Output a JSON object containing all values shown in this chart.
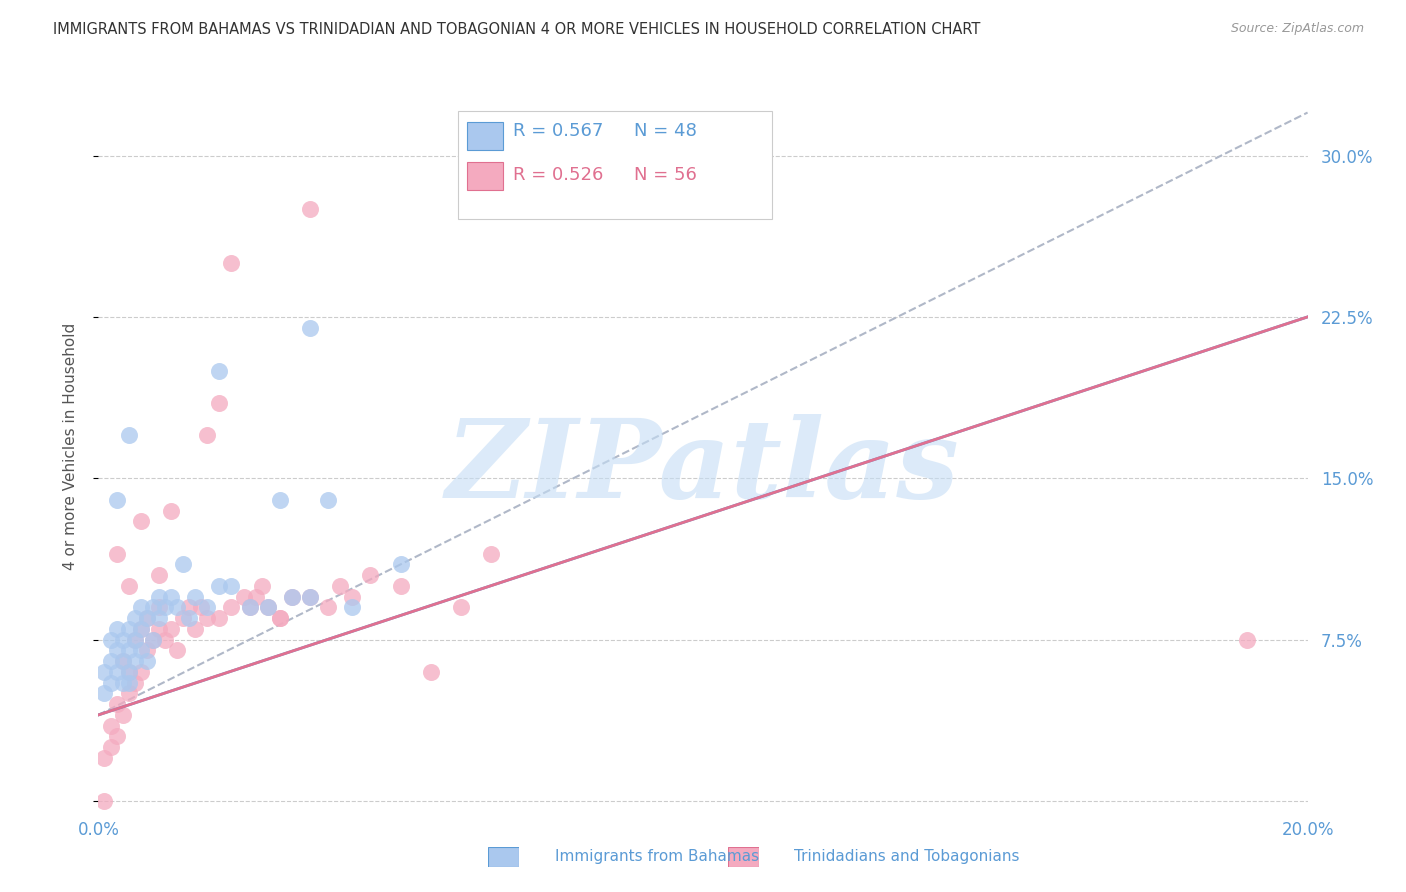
{
  "title": "IMMIGRANTS FROM BAHAMAS VS TRINIDADIAN AND TOBAGONIAN 4 OR MORE VEHICLES IN HOUSEHOLD CORRELATION CHART",
  "source": "Source: ZipAtlas.com",
  "ylabel": "4 or more Vehicles in Household",
  "xlim": [
    0.0,
    0.2
  ],
  "ylim": [
    -0.005,
    0.335
  ],
  "xticks": [
    0.0,
    0.05,
    0.1,
    0.15,
    0.2
  ],
  "xtick_labels": [
    "0.0%",
    "",
    "",
    "",
    "20.0%"
  ],
  "yticks": [
    0.0,
    0.075,
    0.15,
    0.225,
    0.3
  ],
  "ytick_labels": [
    "",
    "7.5%",
    "15.0%",
    "22.5%",
    "30.0%"
  ],
  "legend_blue_r": "R = 0.567",
  "legend_blue_n": "N = 48",
  "legend_pink_r": "R = 0.526",
  "legend_pink_n": "N = 56",
  "legend_label_blue": "Immigrants from Bahamas",
  "legend_label_pink": "Trinidadians and Tobagonians",
  "color_blue": "#aac8ee",
  "color_pink": "#f4aabf",
  "color_blue_line": "#5b9bd5",
  "color_pink_line": "#e07090",
  "color_gray_dash": "#b0b8c8",
  "color_blue_text": "#5b9bd5",
  "color_pink_text": "#e07090",
  "color_axis_text": "#5b9bd5",
  "color_title": "#333333",
  "color_source": "#999999",
  "color_grid": "#cccccc",
  "watermark_text": "ZIPatlas",
  "watermark_color": "#c5ddf5",
  "blue_scatter_x": [
    0.001,
    0.001,
    0.002,
    0.002,
    0.002,
    0.003,
    0.003,
    0.003,
    0.004,
    0.004,
    0.004,
    0.005,
    0.005,
    0.005,
    0.005,
    0.006,
    0.006,
    0.006,
    0.007,
    0.007,
    0.007,
    0.008,
    0.008,
    0.009,
    0.009,
    0.01,
    0.01,
    0.011,
    0.012,
    0.013,
    0.014,
    0.015,
    0.016,
    0.018,
    0.02,
    0.022,
    0.025,
    0.028,
    0.03,
    0.032,
    0.035,
    0.038,
    0.042,
    0.05,
    0.003,
    0.005,
    0.02,
    0.035
  ],
  "blue_scatter_y": [
    0.06,
    0.05,
    0.055,
    0.065,
    0.075,
    0.06,
    0.07,
    0.08,
    0.065,
    0.075,
    0.055,
    0.06,
    0.07,
    0.08,
    0.055,
    0.075,
    0.085,
    0.065,
    0.08,
    0.09,
    0.07,
    0.085,
    0.065,
    0.09,
    0.075,
    0.085,
    0.095,
    0.09,
    0.095,
    0.09,
    0.11,
    0.085,
    0.095,
    0.09,
    0.1,
    0.1,
    0.09,
    0.09,
    0.14,
    0.095,
    0.095,
    0.14,
    0.09,
    0.11,
    0.14,
    0.17,
    0.2,
    0.22
  ],
  "pink_scatter_x": [
    0.001,
    0.001,
    0.002,
    0.002,
    0.003,
    0.003,
    0.004,
    0.004,
    0.005,
    0.005,
    0.006,
    0.006,
    0.007,
    0.007,
    0.008,
    0.008,
    0.009,
    0.01,
    0.01,
    0.011,
    0.012,
    0.013,
    0.014,
    0.015,
    0.016,
    0.017,
    0.018,
    0.02,
    0.022,
    0.024,
    0.025,
    0.026,
    0.027,
    0.028,
    0.03,
    0.032,
    0.035,
    0.038,
    0.04,
    0.042,
    0.045,
    0.05,
    0.055,
    0.06,
    0.065,
    0.003,
    0.005,
    0.01,
    0.02,
    0.03,
    0.007,
    0.012,
    0.018,
    0.022,
    0.035,
    0.19
  ],
  "pink_scatter_y": [
    0.02,
    0.0,
    0.025,
    0.035,
    0.03,
    0.045,
    0.04,
    0.065,
    0.05,
    0.06,
    0.055,
    0.075,
    0.06,
    0.08,
    0.07,
    0.085,
    0.075,
    0.08,
    0.09,
    0.075,
    0.08,
    0.07,
    0.085,
    0.09,
    0.08,
    0.09,
    0.085,
    0.085,
    0.09,
    0.095,
    0.09,
    0.095,
    0.1,
    0.09,
    0.085,
    0.095,
    0.095,
    0.09,
    0.1,
    0.095,
    0.105,
    0.1,
    0.06,
    0.09,
    0.115,
    0.115,
    0.1,
    0.105,
    0.185,
    0.085,
    0.13,
    0.135,
    0.17,
    0.25,
    0.275,
    0.075
  ],
  "blue_trend": [
    0.0,
    0.2,
    0.04,
    0.225
  ],
  "pink_trend": [
    0.0,
    0.2,
    0.04,
    0.225
  ],
  "gray_dash_trend": [
    0.0,
    0.2,
    0.04,
    0.32
  ]
}
